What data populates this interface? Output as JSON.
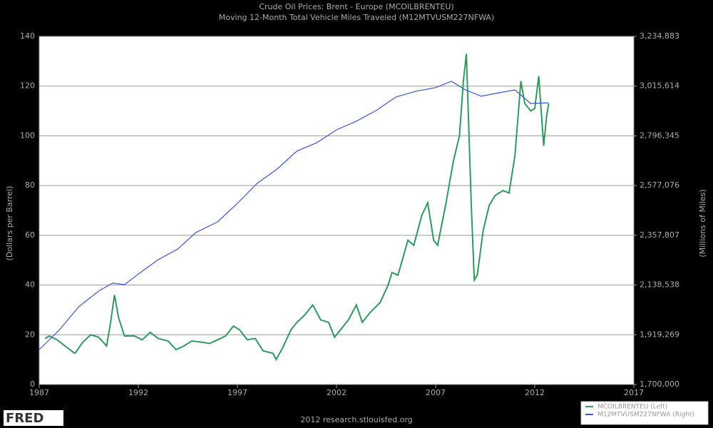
{
  "chart_data": {
    "type": "line",
    "title": "Crude Oil Prices: Brent - Europe (MCOILBRENTEU)",
    "subtitle": "Moving 12-Month Total Vehicle Miles Traveled (M12MTVUSM227NFWA)",
    "ylabel": "(Dollars per Barrel)",
    "y2label": "(Millions of Miles)",
    "source": "2012 research.stlouisfed.org",
    "logo": "FRED",
    "xlim": [
      1987,
      2017
    ],
    "xticks": [
      1987,
      1992,
      1997,
      2002,
      2007,
      2012,
      2017
    ],
    "ylim": [
      0,
      140
    ],
    "yticks": [
      0,
      20,
      40,
      60,
      80,
      100,
      120,
      140
    ],
    "y2lim": [
      1700000,
      3234883
    ],
    "y2ticks": [
      {
        "value": 1700000,
        "label": "1,700,000"
      },
      {
        "value": 1919269,
        "label": "1,919,269"
      },
      {
        "value": 2138538,
        "label": "2,138,538"
      },
      {
        "value": 2357807,
        "label": "2,357,807"
      },
      {
        "value": 2577076,
        "label": "2,577,076"
      },
      {
        "value": 2796345,
        "label": "2,796,345"
      },
      {
        "value": 3015614,
        "label": "3,015,614"
      },
      {
        "value": 3234883,
        "label": "3,234,883"
      }
    ],
    "grid": true,
    "legend": "bottom-right",
    "series": [
      {
        "name": "MCOILBRENTEU (Left)",
        "color": "#2f9a5e",
        "x": [
          1987.3,
          1987.5,
          1987.9,
          1988.3,
          1988.8,
          1989.2,
          1989.6,
          1990.0,
          1990.4,
          1990.6,
          1990.8,
          1991.0,
          1991.3,
          1991.8,
          1992.2,
          1992.6,
          1993.0,
          1993.5,
          1993.9,
          1994.3,
          1994.7,
          1995.2,
          1995.6,
          1996.0,
          1996.4,
          1996.8,
          1997.1,
          1997.5,
          1997.9,
          1998.3,
          1998.8,
          1998.95,
          1999.3,
          1999.7,
          2000.0,
          2000.4,
          2000.8,
          2001.2,
          2001.6,
          2001.9,
          2002.2,
          2002.6,
          2003.0,
          2003.3,
          2003.7,
          2004.2,
          2004.6,
          2004.8,
          2005.1,
          2005.6,
          2005.9,
          2006.3,
          2006.6,
          2006.9,
          2007.1,
          2007.5,
          2007.9,
          2008.2,
          2008.4,
          2008.55,
          2008.8,
          2008.95,
          2009.1,
          2009.4,
          2009.7,
          2010.0,
          2010.4,
          2010.7,
          2011.0,
          2011.3,
          2011.5,
          2011.8,
          2012.0,
          2012.2,
          2012.45,
          2012.6,
          2012.7
        ],
        "values": [
          18.5,
          19.5,
          18,
          15.5,
          12.5,
          17,
          20,
          19,
          15.5,
          25,
          36,
          27,
          19.5,
          19.5,
          18,
          21,
          18.5,
          17.5,
          14,
          15.5,
          17.5,
          17,
          16.5,
          18,
          19.5,
          23.5,
          22,
          18,
          18.5,
          13.5,
          12.5,
          10,
          15,
          22,
          25,
          28,
          32,
          26,
          25,
          19,
          22,
          26,
          32,
          25,
          29,
          33,
          40,
          45,
          44,
          58,
          56,
          68,
          73,
          58,
          56,
          72,
          90,
          100,
          122,
          133,
          72,
          42,
          44,
          62,
          72,
          76,
          78,
          77,
          92,
          122,
          113,
          110,
          111,
          124,
          96,
          108,
          113
        ]
      },
      {
        "name": "M12MTVUSM227NFWA (Right)",
        "color": "#3a56d4",
        "axis": "y2",
        "x": [
          1987.0,
          1988,
          1989,
          1990,
          1990.7,
          1991.3,
          1992,
          1993,
          1994,
          1994.9,
          1996,
          1997,
          1998,
          1999,
          2000,
          2001,
          2002,
          2003,
          2004,
          2005,
          2006,
          2007,
          2007.8,
          2008.5,
          2009.3,
          2010,
          2011,
          2011.8,
          2012.7
        ],
        "values": [
          1854000,
          1939000,
          2043000,
          2112000,
          2147000,
          2140000,
          2187000,
          2250000,
          2298000,
          2370000,
          2417000,
          2499000,
          2587000,
          2650000,
          2729000,
          2766000,
          2823000,
          2861000,
          2908000,
          2968000,
          2993000,
          3009000,
          3037000,
          2999000,
          2971000,
          2983000,
          2999000,
          2939000,
          2942000
        ]
      }
    ]
  }
}
